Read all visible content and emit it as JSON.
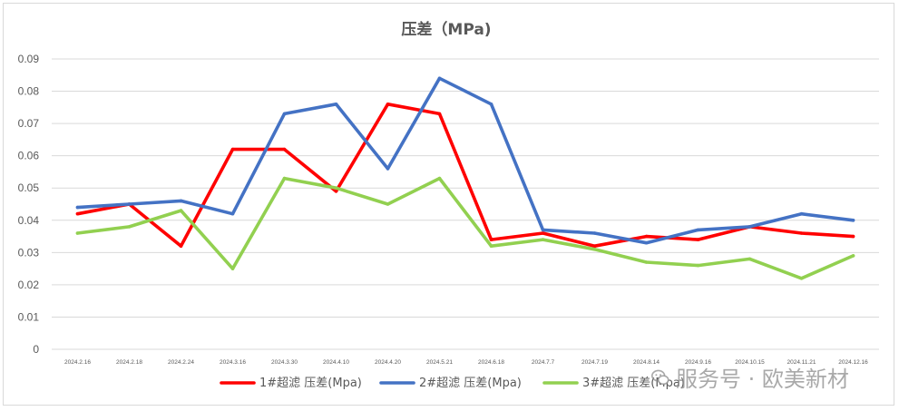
{
  "chart_data": {
    "type": "line",
    "title": "压差（MPa)",
    "xlabel": "",
    "ylabel": "",
    "categories": [
      "2024.2.16",
      "2024.2.18",
      "2024.2.24",
      "2024.3.16",
      "2024.3.30",
      "2024.4.10",
      "2024.4.20",
      "2024.5.21",
      "2024.6.18",
      "2024.7.7",
      "2024.7.19",
      "2024.8.14",
      "2024.9.16",
      "2024.10.15",
      "2024.11.21",
      "2024.12.16"
    ],
    "ylim": [
      0,
      0.09
    ],
    "yticks": [
      "0",
      "0.01",
      "0.02",
      "0.03",
      "0.04",
      "0.05",
      "0.06",
      "0.07",
      "0.08",
      "0.09"
    ],
    "grid": true,
    "legend_position": "bottom",
    "series": [
      {
        "name": "1#超滤 压差(Mpa)",
        "color": "#ff0000",
        "values": [
          0.042,
          0.045,
          0.032,
          0.062,
          0.062,
          0.049,
          0.076,
          0.073,
          0.034,
          0.036,
          0.032,
          0.035,
          0.034,
          0.038,
          0.036,
          0.035
        ]
      },
      {
        "name": "2#超滤 压差(Mpa)",
        "color": "#4472c4",
        "values": [
          0.044,
          0.045,
          0.046,
          0.042,
          0.073,
          0.076,
          0.056,
          0.084,
          0.076,
          0.037,
          0.036,
          0.033,
          0.037,
          0.038,
          0.042,
          0.04
        ]
      },
      {
        "name": "3#超滤 压差(Mpa)",
        "color": "#92d050",
        "values": [
          0.036,
          0.038,
          0.043,
          0.025,
          0.053,
          0.05,
          0.045,
          0.053,
          0.032,
          0.034,
          0.031,
          0.027,
          0.026,
          0.028,
          0.022,
          0.029
        ]
      }
    ]
  },
  "watermark": {
    "text": "服务号 · 欧美新材",
    "icon": "wechat-icon"
  }
}
